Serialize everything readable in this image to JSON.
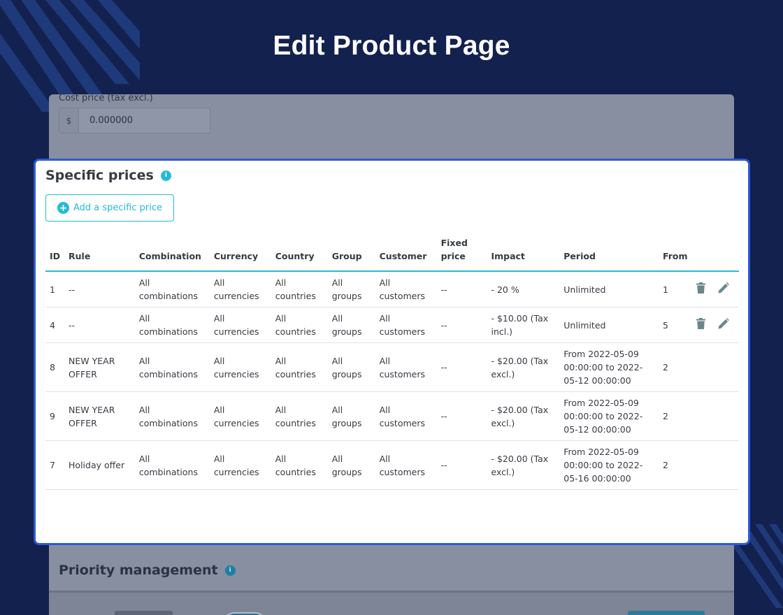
{
  "page_title": "Edit Product Page",
  "cost_price": {
    "label": "Cost price (tax excl.)",
    "prefix": "$",
    "value": "0.000000"
  },
  "specific_prices": {
    "title": "Specific prices",
    "info_icon": "info-icon",
    "add_button_label": "Add a specific price",
    "columns": [
      "ID",
      "Rule",
      "Combination",
      "Currency",
      "Country",
      "Group",
      "Customer",
      "Fixed price",
      "Impact",
      "Period",
      "From"
    ],
    "rows": [
      {
        "id": "1",
        "rule": "--",
        "combination": "All combinations",
        "currency": "All currencies",
        "country": "All countries",
        "group": "All groups",
        "customer": "All customers",
        "fixed_price": "--",
        "impact": "- 20 %",
        "period": "Unlimited",
        "from": "1",
        "has_actions": true
      },
      {
        "id": "4",
        "rule": "--",
        "combination": "All combinations",
        "currency": "All currencies",
        "country": "All countries",
        "group": "All groups",
        "customer": "All customers",
        "fixed_price": "--",
        "impact": "- $10.00 (Tax incl.)",
        "period": "Unlimited",
        "from": "5",
        "has_actions": true
      },
      {
        "id": "8",
        "rule": "NEW YEAR OFFER",
        "combination": "All combinations",
        "currency": "All currencies",
        "country": "All countries",
        "group": "All groups",
        "customer": "All customers",
        "fixed_price": "--",
        "impact": "- $20.00 (Tax excl.)",
        "period": "From 2022-05-09 00:00:00 to 2022-05-12 00:00:00",
        "from": "2",
        "has_actions": false
      },
      {
        "id": "9",
        "rule": "NEW YEAR OFFER",
        "combination": "All combinations",
        "currency": "All currencies",
        "country": "All countries",
        "group": "All groups",
        "customer": "All customers",
        "fixed_price": "--",
        "impact": "- $20.00 (Tax excl.)",
        "period": "From 2022-05-09 00:00:00 to 2022-05-12 00:00:00",
        "from": "2",
        "has_actions": false
      },
      {
        "id": "7",
        "rule": "Holiday offer",
        "combination": "All combinations",
        "currency": "All currencies",
        "country": "All countries",
        "group": "All groups",
        "customer": "All customers",
        "fixed_price": "--",
        "impact": "- $20.00 (Tax excl.)",
        "period": "From 2022-05-09 00:00:00 to 2022-05-16 00:00:00",
        "from": "2",
        "has_actions": false
      }
    ]
  },
  "priority_management": {
    "title": "Priority management"
  },
  "colors": {
    "background": "#13214f",
    "accent": "#25b9d7",
    "highlight_border": "#2f59d6"
  }
}
